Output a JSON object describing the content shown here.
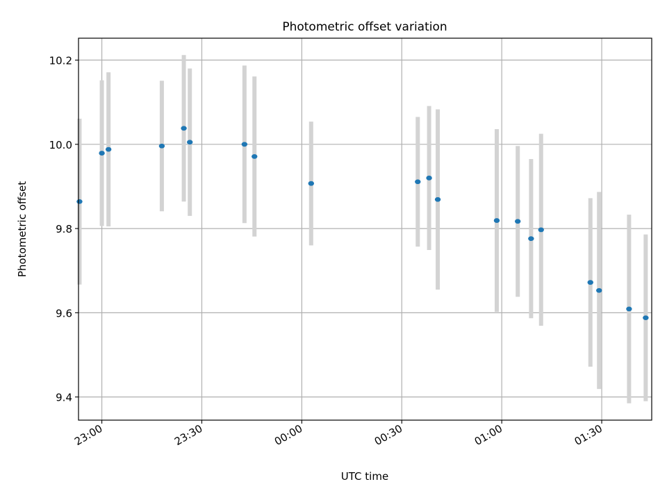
{
  "chart_data": {
    "type": "scatter",
    "title": "Photometric offset variation",
    "xlabel": "UTC time",
    "ylabel": "Photometric offset",
    "x_ticks": [
      "23:00",
      "23:30",
      "00:00",
      "00:30",
      "01:00",
      "01:30"
    ],
    "x_tick_values": [
      "22:59:59",
      "23:29:59",
      "23:59:59",
      "00:29:59",
      "00:59:59",
      "01:29:59"
    ],
    "y_ticks": [
      "9.4",
      "9.6",
      "9.8",
      "10.0",
      "10.2"
    ],
    "xlim": [
      "22:52:59",
      "01:44:59"
    ],
    "ylim": [
      9.345,
      10.252
    ],
    "grid": true,
    "colors": {
      "points": "#1f77b4",
      "error_bars": "#d3d3d3",
      "grid": "#b0b0b0"
    },
    "points": [
      {
        "x": "22:53:17",
        "y": 9.864,
        "err": 0.197
      },
      {
        "x": "22:59:59",
        "y": 9.979,
        "err": 0.173
      },
      {
        "x": "23:01:59",
        "y": 9.988,
        "err": 0.183
      },
      {
        "x": "23:17:59",
        "y": 9.996,
        "err": 0.155
      },
      {
        "x": "23:24:35",
        "y": 10.038,
        "err": 0.174
      },
      {
        "x": "23:26:23",
        "y": 10.005,
        "err": 0.175
      },
      {
        "x": "23:42:47",
        "y": 10.0,
        "err": 0.187
      },
      {
        "x": "23:45:47",
        "y": 9.971,
        "err": 0.19
      },
      {
        "x": "00:02:47",
        "y": 9.907,
        "err": 0.147
      },
      {
        "x": "00:34:47",
        "y": 9.911,
        "err": 0.154
      },
      {
        "x": "00:38:11",
        "y": 9.92,
        "err": 0.171
      },
      {
        "x": "00:40:47",
        "y": 9.869,
        "err": 0.214
      },
      {
        "x": "00:58:29",
        "y": 9.819,
        "err": 0.217
      },
      {
        "x": "01:04:47",
        "y": 9.817,
        "err": 0.179
      },
      {
        "x": "01:08:47",
        "y": 9.776,
        "err": 0.189
      },
      {
        "x": "01:11:47",
        "y": 9.797,
        "err": 0.228
      },
      {
        "x": "01:26:35",
        "y": 9.672,
        "err": 0.2
      },
      {
        "x": "01:29:11",
        "y": 9.653,
        "err": 0.234
      },
      {
        "x": "01:38:11",
        "y": 9.609,
        "err": 0.224
      },
      {
        "x": "01:43:11",
        "y": 9.588,
        "err": 0.198
      }
    ]
  }
}
